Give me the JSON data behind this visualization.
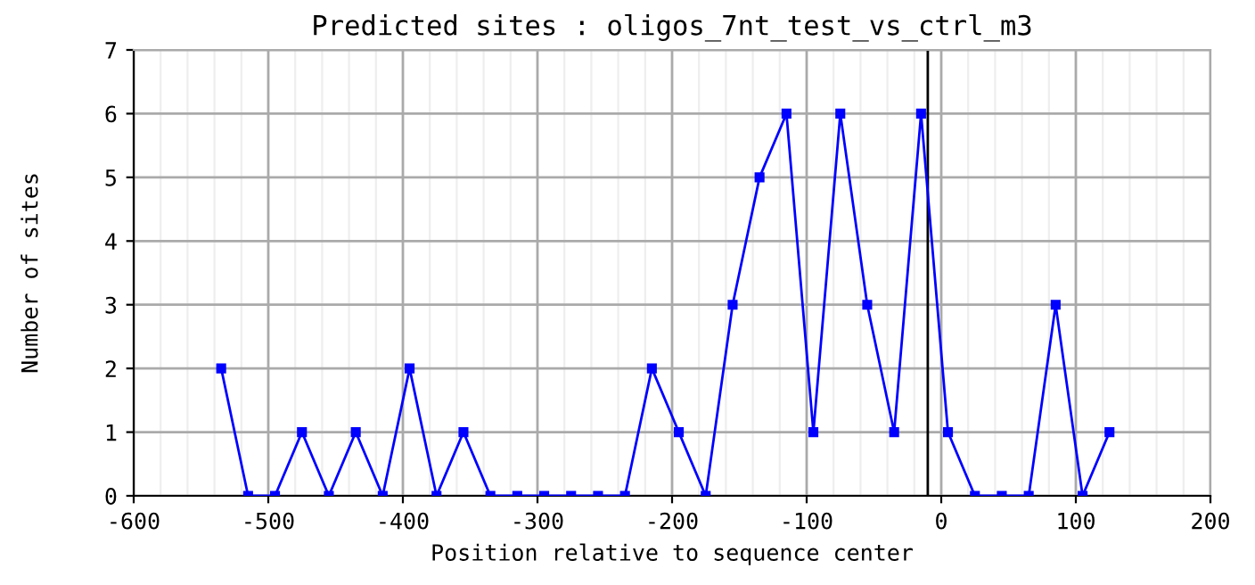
{
  "chart_data": {
    "type": "line",
    "title": "Predicted sites : oligos_7nt_test_vs_ctrl_m3",
    "xlabel": "Position relative to sequence center",
    "ylabel": "Number of sites",
    "x": [
      -535,
      -515,
      -495,
      -475,
      -455,
      -435,
      -415,
      -395,
      -375,
      -355,
      -335,
      -315,
      -295,
      -275,
      -255,
      -235,
      -215,
      -195,
      -175,
      -155,
      -135,
      -115,
      -95,
      -75,
      -55,
      -35,
      -15,
      5,
      25,
      45,
      65,
      85,
      105,
      125
    ],
    "series": [
      {
        "color": "#0000ff",
        "values": [
          2,
          0,
          0,
          1,
          0,
          1,
          0,
          2,
          0,
          1,
          0,
          0,
          0,
          0,
          0,
          0,
          2,
          1,
          0,
          3,
          5,
          6,
          1,
          6,
          3,
          1,
          6,
          1,
          0,
          0,
          0,
          3,
          0,
          1
        ]
      }
    ],
    "xlim": [
      -600,
      200
    ],
    "xticks": [
      -600,
      -500,
      -400,
      -300,
      -200,
      -100,
      0,
      100,
      200
    ],
    "ylim": [
      0,
      7
    ],
    "yticks": [
      0,
      1,
      2,
      3,
      4,
      5,
      6,
      7
    ],
    "grid": true,
    "marker": "square",
    "line_style": "solid",
    "ref_lines": [
      {
        "axis": "x",
        "value": -10,
        "color": "#000000"
      }
    ]
  }
}
